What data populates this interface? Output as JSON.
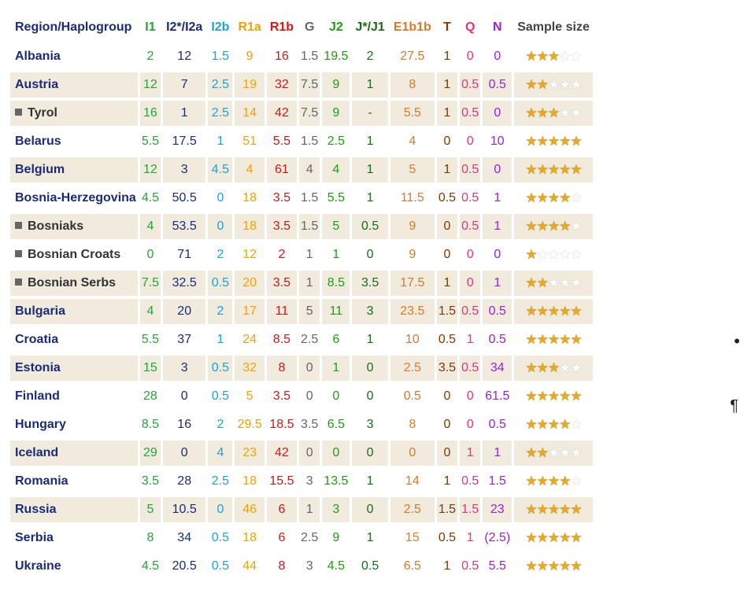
{
  "headers": [
    {
      "label": "Region/Haplogroup",
      "color": "#1a2b7a"
    },
    {
      "label": "I1",
      "color": "#27a33a"
    },
    {
      "label": "I2*/I2a",
      "color": "#1a2b7a"
    },
    {
      "label": "I2b",
      "color": "#1ba4d6"
    },
    {
      "label": "R1a",
      "color": "#f2a200"
    },
    {
      "label": "R1b",
      "color": "#d11818"
    },
    {
      "label": "G",
      "color": "#666666"
    },
    {
      "label": "J2",
      "color": "#1f9e10"
    },
    {
      "label": "J*/J1",
      "color": "#1a6b1a"
    },
    {
      "label": "E1b1b",
      "color": "#d97a2a"
    },
    {
      "label": "T",
      "color": "#7a3b00"
    },
    {
      "label": "Q",
      "color": "#e6337a"
    },
    {
      "label": "N",
      "color": "#9b20d9"
    },
    {
      "label": "Sample size",
      "color": "#444444"
    }
  ],
  "rows": [
    {
      "region": "Albania",
      "sub": false,
      "values": [
        "2",
        "12",
        "1.5",
        "9",
        "16",
        "1.5",
        "19.5",
        "2",
        "27.5",
        "1",
        "0",
        "0"
      ],
      "stars": 3
    },
    {
      "region": "Austria",
      "sub": false,
      "values": [
        "12",
        "7",
        "2.5",
        "19",
        "32",
        "7.5",
        "9",
        "1",
        "8",
        "1",
        "0.5",
        "0.5"
      ],
      "stars": 2
    },
    {
      "region": "Tyrol",
      "sub": true,
      "values": [
        "16",
        "1",
        "2.5",
        "14",
        "42",
        "7.5",
        "9",
        "-",
        "5.5",
        "1",
        "0.5",
        "0"
      ],
      "stars": 3
    },
    {
      "region": "Belarus",
      "sub": false,
      "values": [
        "5.5",
        "17.5",
        "1",
        "51",
        "5.5",
        "1.5",
        "2.5",
        "1",
        "4",
        "0",
        "0",
        "10"
      ],
      "stars": 5
    },
    {
      "region": "Belgium",
      "sub": false,
      "values": [
        "12",
        "3",
        "4.5",
        "4",
        "61",
        "4",
        "4",
        "1",
        "5",
        "1",
        "0.5",
        "0"
      ],
      "stars": 5
    },
    {
      "region": "Bosnia-Herzegovina",
      "sub": false,
      "values": [
        "4.5",
        "50.5",
        "0",
        "18",
        "3.5",
        "1.5",
        "5.5",
        "1",
        "11.5",
        "0.5",
        "0.5",
        "1"
      ],
      "stars": 4
    },
    {
      "region": "Bosniaks",
      "sub": true,
      "values": [
        "4",
        "53.5",
        "0",
        "18",
        "3.5",
        "1.5",
        "5",
        "0.5",
        "9",
        "0",
        "0.5",
        "1"
      ],
      "stars": 4
    },
    {
      "region": "Bosnian Croats",
      "sub": true,
      "values": [
        "0",
        "71",
        "2",
        "12",
        "2",
        "1",
        "1",
        "0",
        "9",
        "0",
        "0",
        "0"
      ],
      "stars": 1
    },
    {
      "region": "Bosnian Serbs",
      "sub": true,
      "values": [
        "7.5",
        "32.5",
        "0.5",
        "20",
        "3.5",
        "1",
        "8.5",
        "3.5",
        "17.5",
        "1",
        "0",
        "1"
      ],
      "stars": 2
    },
    {
      "region": "Bulgaria",
      "sub": false,
      "values": [
        "4",
        "20",
        "2",
        "17",
        "11",
        "5",
        "11",
        "3",
        "23.5",
        "1.5",
        "0.5",
        "0.5"
      ],
      "stars": 5
    },
    {
      "region": "Croatia",
      "sub": false,
      "values": [
        "5.5",
        "37",
        "1",
        "24",
        "8.5",
        "2.5",
        "6",
        "1",
        "10",
        "0.5",
        "1",
        "0.5"
      ],
      "stars": 5
    },
    {
      "region": "Estonia",
      "sub": false,
      "values": [
        "15",
        "3",
        "0.5",
        "32",
        "8",
        "0",
        "1",
        "0",
        "2.5",
        "3.5",
        "0.5",
        "34"
      ],
      "stars": 3
    },
    {
      "region": "Finland",
      "sub": false,
      "values": [
        "28",
        "0",
        "0.5",
        "5",
        "3.5",
        "0",
        "0",
        "0",
        "0.5",
        "0",
        "0",
        "61.5"
      ],
      "stars": 5
    },
    {
      "region": "Hungary",
      "sub": false,
      "values": [
        "8.5",
        "16",
        "2",
        "29.5",
        "18.5",
        "3.5",
        "6.5",
        "3",
        "8",
        "0",
        "0",
        "0.5"
      ],
      "stars": 4
    },
    {
      "region": "Iceland",
      "sub": false,
      "values": [
        "29",
        "0",
        "4",
        "23",
        "42",
        "0",
        "0",
        "0",
        "0",
        "0",
        "1",
        "1"
      ],
      "stars": 2
    },
    {
      "region": "Romania",
      "sub": false,
      "values": [
        "3.5",
        "28",
        "2.5",
        "18",
        "15.5",
        "3",
        "13.5",
        "1",
        "14",
        "1",
        "0.5",
        "1.5"
      ],
      "stars": 4
    },
    {
      "region": "Russia",
      "sub": false,
      "values": [
        "5",
        "10.5",
        "0",
        "46",
        "6",
        "1",
        "3",
        "0",
        "2.5",
        "1.5",
        "1.5",
        "23"
      ],
      "stars": 5
    },
    {
      "region": "Serbia",
      "sub": false,
      "values": [
        "8",
        "34",
        "0.5",
        "18",
        "6",
        "2.5",
        "9",
        "1",
        "15",
        "0.5",
        "1",
        "(2.5)"
      ],
      "stars": 5
    },
    {
      "region": "Ukraine",
      "sub": false,
      "values": [
        "4.5",
        "20.5",
        "0.5",
        "44",
        "8",
        "3",
        "4.5",
        "0.5",
        "6.5",
        "1",
        "0.5",
        "5.5"
      ],
      "stars": 5
    }
  ],
  "shaded_rows": [
    1,
    2,
    4,
    6,
    8,
    9,
    11,
    14,
    16
  ],
  "marks": {
    "bullet": "•",
    "pilcrow": "¶"
  }
}
